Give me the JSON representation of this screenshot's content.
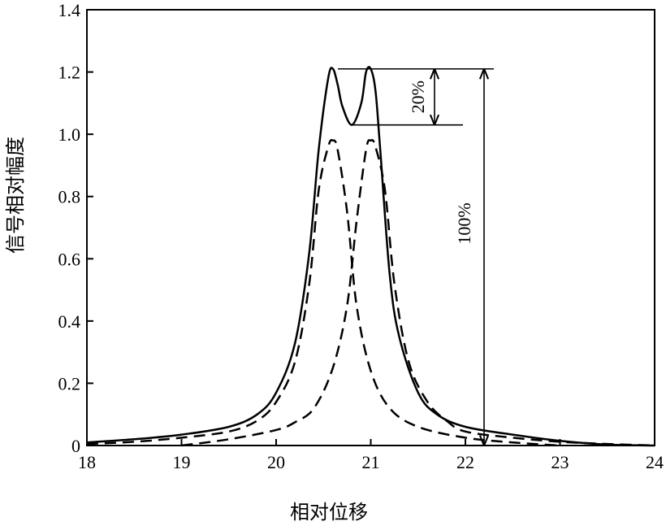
{
  "chart_data": {
    "type": "line",
    "xlabel": "相对位移",
    "ylabel": "信号相对幅度",
    "xlim": [
      18,
      24
    ],
    "ylim": [
      0,
      1.4
    ],
    "xticks": [
      18,
      19,
      20,
      21,
      22,
      23,
      24
    ],
    "yticks": [
      0,
      0.2,
      0.4,
      0.6,
      0.8,
      1.0,
      1.2,
      1.4
    ],
    "ytick_labels": [
      "0",
      "0.2",
      "0.4",
      "0.6",
      "0.8",
      "1.0",
      "1.2",
      "1.4"
    ],
    "grid": false,
    "series": [
      {
        "style": "solid",
        "x": [
          18.0,
          18.5,
          19.0,
          19.5,
          19.8,
          20.0,
          20.2,
          20.35,
          20.45,
          20.55,
          20.6,
          20.65,
          20.7,
          20.8,
          20.9,
          20.95,
          21.0,
          21.05,
          21.1,
          21.2,
          21.3,
          21.5,
          21.7,
          22.0,
          22.5,
          23.0,
          23.5,
          24.0
        ],
        "y": [
          0.01,
          0.02,
          0.035,
          0.06,
          0.1,
          0.17,
          0.33,
          0.62,
          0.95,
          1.18,
          1.21,
          1.16,
          1.09,
          1.03,
          1.1,
          1.2,
          1.21,
          1.14,
          0.95,
          0.55,
          0.35,
          0.17,
          0.1,
          0.06,
          0.035,
          0.015,
          0.003,
          0.0
        ]
      },
      {
        "style": "dashed",
        "x": [
          18.0,
          18.5,
          19.0,
          19.5,
          19.8,
          20.0,
          20.2,
          20.35,
          20.45,
          20.55,
          20.6,
          20.65,
          20.75,
          20.85,
          21.0,
          21.2,
          21.5,
          22.0,
          22.5,
          23.0
        ],
        "y": [
          0.005,
          0.012,
          0.025,
          0.045,
          0.08,
          0.14,
          0.27,
          0.52,
          0.82,
          0.96,
          0.98,
          0.95,
          0.75,
          0.45,
          0.24,
          0.12,
          0.06,
          0.025,
          0.01,
          0.0
        ]
      },
      {
        "style": "dashed",
        "x": [
          19.0,
          19.5,
          20.0,
          20.2,
          20.4,
          20.6,
          20.75,
          20.85,
          20.95,
          21.0,
          21.05,
          21.15,
          21.25,
          21.4,
          21.6,
          21.8,
          22.0,
          22.5,
          23.0,
          23.5,
          24.0
        ],
        "y": [
          0.0,
          0.02,
          0.05,
          0.075,
          0.12,
          0.25,
          0.45,
          0.72,
          0.95,
          0.98,
          0.96,
          0.82,
          0.52,
          0.27,
          0.14,
          0.08,
          0.045,
          0.025,
          0.012,
          0.005,
          0.0
        ]
      }
    ],
    "annotations": [
      {
        "text": "20%",
        "from": 1.03,
        "to": 1.21
      },
      {
        "text": "100%",
        "from": 0.0,
        "to": 1.21
      }
    ]
  }
}
